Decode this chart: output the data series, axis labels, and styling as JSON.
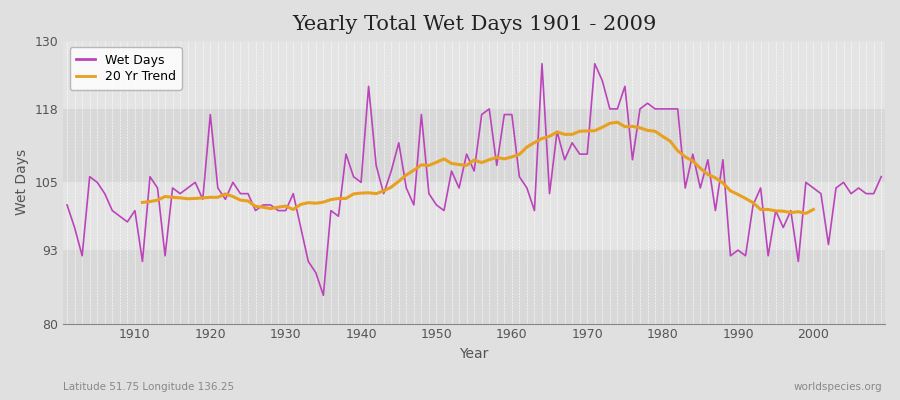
{
  "title": "Yearly Total Wet Days 1901 - 2009",
  "xlabel": "Year",
  "ylabel": "Wet Days",
  "footnote_left": "Latitude 51.75 Longitude 136.25",
  "footnote_right": "worldspecies.org",
  "ylim": [
    80,
    130
  ],
  "yticks": [
    80,
    93,
    105,
    118,
    130
  ],
  "years": [
    1901,
    1902,
    1903,
    1904,
    1905,
    1906,
    1907,
    1908,
    1909,
    1910,
    1911,
    1912,
    1913,
    1914,
    1915,
    1916,
    1917,
    1918,
    1919,
    1920,
    1921,
    1922,
    1923,
    1924,
    1925,
    1926,
    1927,
    1928,
    1929,
    1930,
    1931,
    1932,
    1933,
    1934,
    1935,
    1936,
    1937,
    1938,
    1939,
    1940,
    1941,
    1942,
    1943,
    1944,
    1945,
    1946,
    1947,
    1948,
    1949,
    1950,
    1951,
    1952,
    1953,
    1954,
    1955,
    1956,
    1957,
    1958,
    1959,
    1960,
    1961,
    1962,
    1963,
    1964,
    1965,
    1966,
    1967,
    1968,
    1969,
    1970,
    1971,
    1972,
    1973,
    1974,
    1975,
    1976,
    1977,
    1978,
    1979,
    1980,
    1981,
    1982,
    1983,
    1984,
    1985,
    1986,
    1987,
    1988,
    1989,
    1990,
    1991,
    1992,
    1993,
    1994,
    1995,
    1996,
    1997,
    1998,
    1999,
    2000,
    2001,
    2002,
    2003,
    2004,
    2005,
    2006,
    2007,
    2008,
    2009
  ],
  "wet_days": [
    101,
    97,
    92,
    106,
    105,
    103,
    100,
    99,
    98,
    100,
    91,
    106,
    104,
    92,
    104,
    103,
    104,
    105,
    102,
    117,
    104,
    102,
    105,
    103,
    103,
    100,
    101,
    101,
    100,
    100,
    103,
    97,
    91,
    89,
    85,
    100,
    99,
    110,
    106,
    105,
    122,
    108,
    103,
    107,
    112,
    104,
    101,
    117,
    103,
    101,
    100,
    107,
    104,
    110,
    107,
    117,
    118,
    108,
    117,
    117,
    106,
    104,
    100,
    126,
    103,
    114,
    109,
    112,
    110,
    110,
    126,
    123,
    118,
    118,
    122,
    109,
    118,
    119,
    118,
    118,
    118,
    118,
    104,
    110,
    104,
    109,
    100,
    109,
    92,
    93,
    92,
    101,
    104,
    92,
    100,
    97,
    100,
    91,
    105,
    104,
    103,
    94,
    104,
    105,
    103,
    104,
    103,
    103,
    106
  ],
  "wet_days_color": "#bb44bb",
  "trend_color": "#e8a020",
  "outer_bg": "#e0e0e0",
  "plot_bg": "#e8e8e8",
  "plot_bg_band": "#d8d8d8",
  "grid_color": "#ffffff",
  "legend_labels": [
    "Wet Days",
    "20 Yr Trend"
  ],
  "trend_window": 20
}
